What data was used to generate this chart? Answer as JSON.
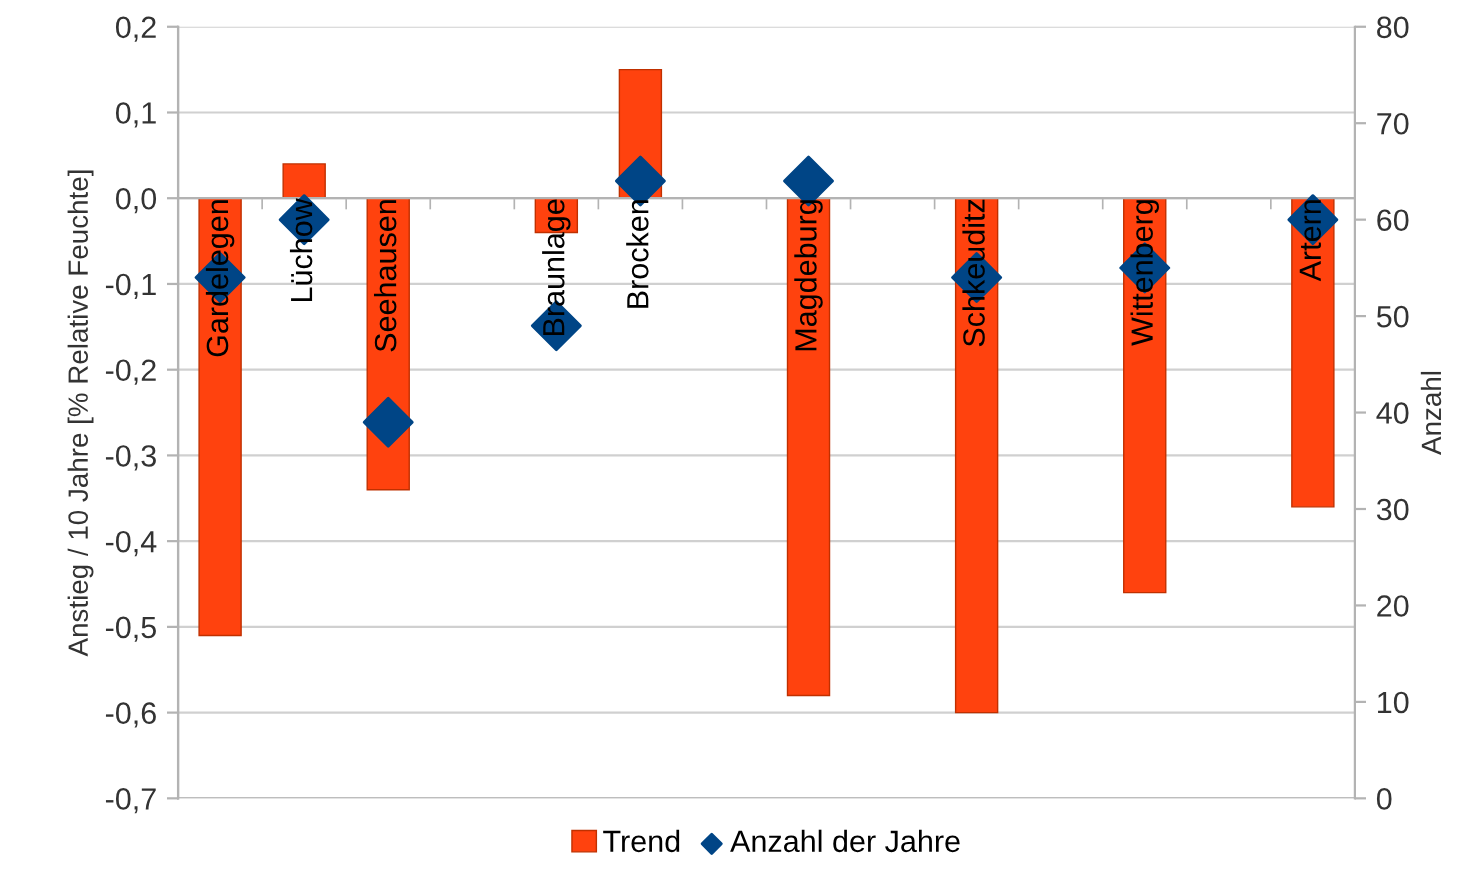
{
  "chart_data": {
    "type": "bar",
    "categories": [
      "Gardelegen",
      "Lüchow",
      "Seehausen",
      null,
      "Braunlage",
      "Brocken",
      null,
      "Magdeburg",
      null,
      "Schkeuditz",
      null,
      "Wittenberg",
      null,
      "Artern"
    ],
    "series": [
      {
        "name": "Trend",
        "color": "#ff420e",
        "values": [
          -0.51,
          0.04,
          -0.34,
          null,
          -0.04,
          0.15,
          null,
          -0.58,
          null,
          -0.6,
          null,
          -0.46,
          null,
          -0.36
        ]
      },
      {
        "name": "Anzahl der Jahre",
        "type": "scatter",
        "axis": "y2",
        "marker": "diamond",
        "color": "#004586",
        "values": [
          54,
          60,
          39,
          null,
          49,
          64,
          null,
          64,
          null,
          54,
          null,
          55,
          null,
          60
        ]
      }
    ],
    "ylabel": "Anstieg / 10 Jahre [% Relative Feuchte]",
    "y2label": "Anzahl",
    "ylim": [
      -0.7,
      0.2
    ],
    "yticks": [
      {
        "value": -0.7,
        "label": "-0,7"
      },
      {
        "value": -0.6,
        "label": "-0,6"
      },
      {
        "value": -0.5,
        "label": "-0,5"
      },
      {
        "value": -0.4,
        "label": "-0,4"
      },
      {
        "value": -0.3,
        "label": "-0,3"
      },
      {
        "value": -0.2,
        "label": "-0,2"
      },
      {
        "value": -0.1,
        "label": "-0,1"
      },
      {
        "value": 0,
        "label": "0,0"
      },
      {
        "value": 0.1,
        "label": "0,1"
      },
      {
        "value": 0.2,
        "label": "0,2"
      }
    ],
    "y2lim": [
      0,
      80
    ],
    "y2ticks": [
      0,
      10,
      20,
      30,
      40,
      50,
      60,
      70,
      80
    ],
    "grid": "y",
    "legend": "bottom"
  }
}
